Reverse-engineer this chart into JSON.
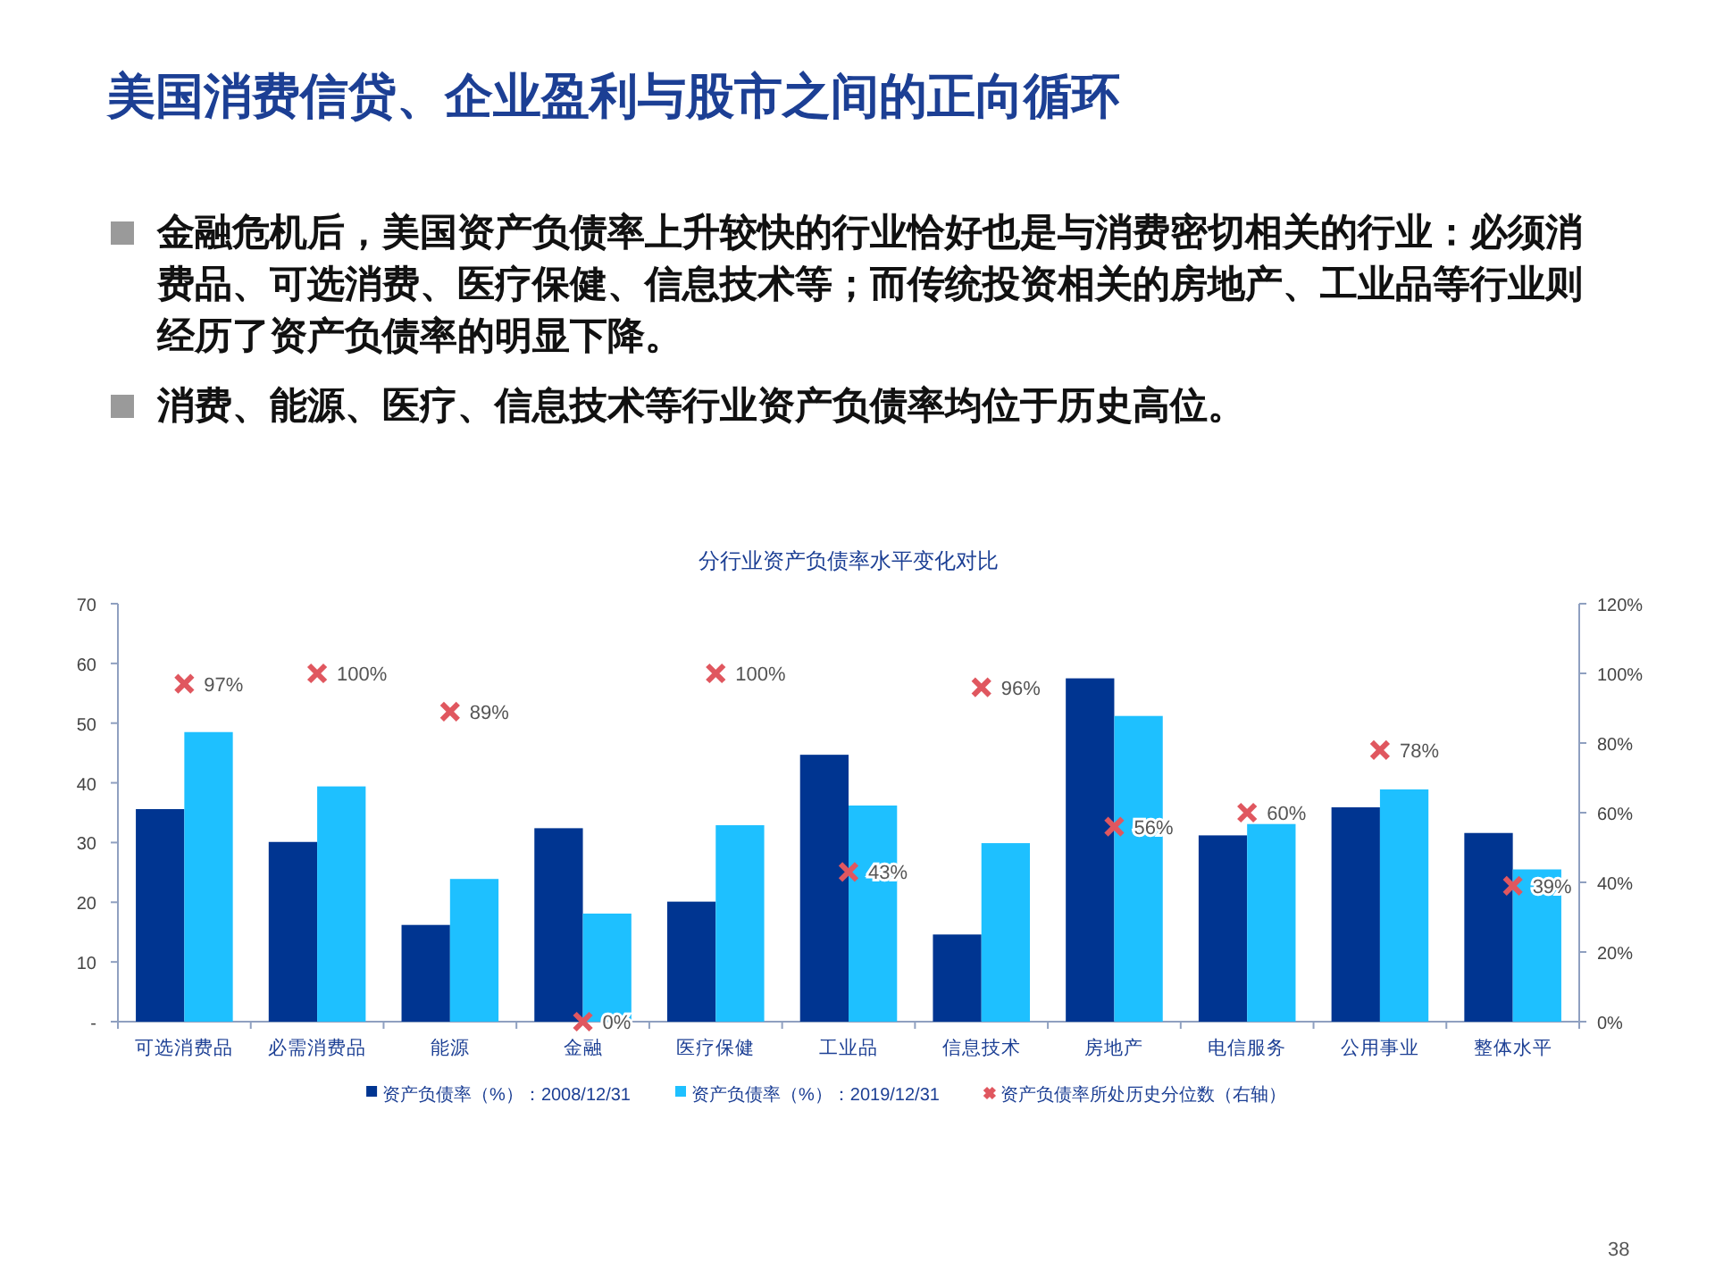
{
  "chart_data": {
    "type": "bar",
    "title": "美国消费信贷、企业盈利与股市之间的正向循环",
    "subtitle": "分行业资产负债率水平变化对比",
    "annotations": [
      "金融危机后，美国资产负债率上升较快的行业恰好也是与消费密切相关的行业：必须消费品、可选消费、医疗保健、信息技术等；而传统投资相关的房地产、工业品等行业则经历了资产负债率的明显下降。",
      "消费、能源、医疗、信息技术等行业资产负债率均位于历史高位。",
      "38"
    ],
    "categories": [
      "可选消费品",
      "必需消费品",
      "能源",
      "金融",
      "医疗保健",
      "工业品",
      "信息技术",
      "房地产",
      "电信服务",
      "公用事业",
      "整体水平"
    ],
    "series": [
      {
        "name": "资产负债率（%）：2008/12/31",
        "color": "#003591",
        "values": [
          35.6,
          30.1,
          16.2,
          32.4,
          20.1,
          44.7,
          14.6,
          57.5,
          31.2,
          35.9,
          31.6
        ]
      },
      {
        "name": "资产负债率（%）：2019/12/31",
        "color": "#1ec0ff",
        "values": [
          48.5,
          39.4,
          23.9,
          18.1,
          32.9,
          36.2,
          29.9,
          51.2,
          33.1,
          38.9,
          25.5
        ]
      },
      {
        "name": "资产负债率所处历史分位数（右轴）",
        "type": "scatter",
        "axis": "y2",
        "marker": "cross",
        "color": "#e0575f",
        "values": [
          97,
          100,
          89,
          0,
          100,
          43,
          96,
          56,
          60,
          78,
          39
        ],
        "value_labels": [
          "97%",
          "100%",
          "89%",
          "0%",
          "100%",
          "43%",
          "96%",
          "56%",
          "60%",
          "78%",
          "39%"
        ]
      }
    ],
    "ylim": [
      0,
      70
    ],
    "yticks": [
      {
        "value": 0,
        "label": "-"
      },
      10,
      20,
      30,
      40,
      50,
      60,
      70
    ],
    "y2lim": [
      0,
      120
    ],
    "y2ticks": [
      {
        "value": 0,
        "label": "0%"
      },
      {
        "value": 20,
        "label": "20%"
      },
      {
        "value": 40,
        "label": "40%"
      },
      {
        "value": 60,
        "label": "60%"
      },
      {
        "value": 80,
        "label": "80%"
      },
      {
        "value": 100,
        "label": "100%"
      },
      {
        "value": 120,
        "label": "120%"
      }
    ],
    "legend": "bottom"
  }
}
